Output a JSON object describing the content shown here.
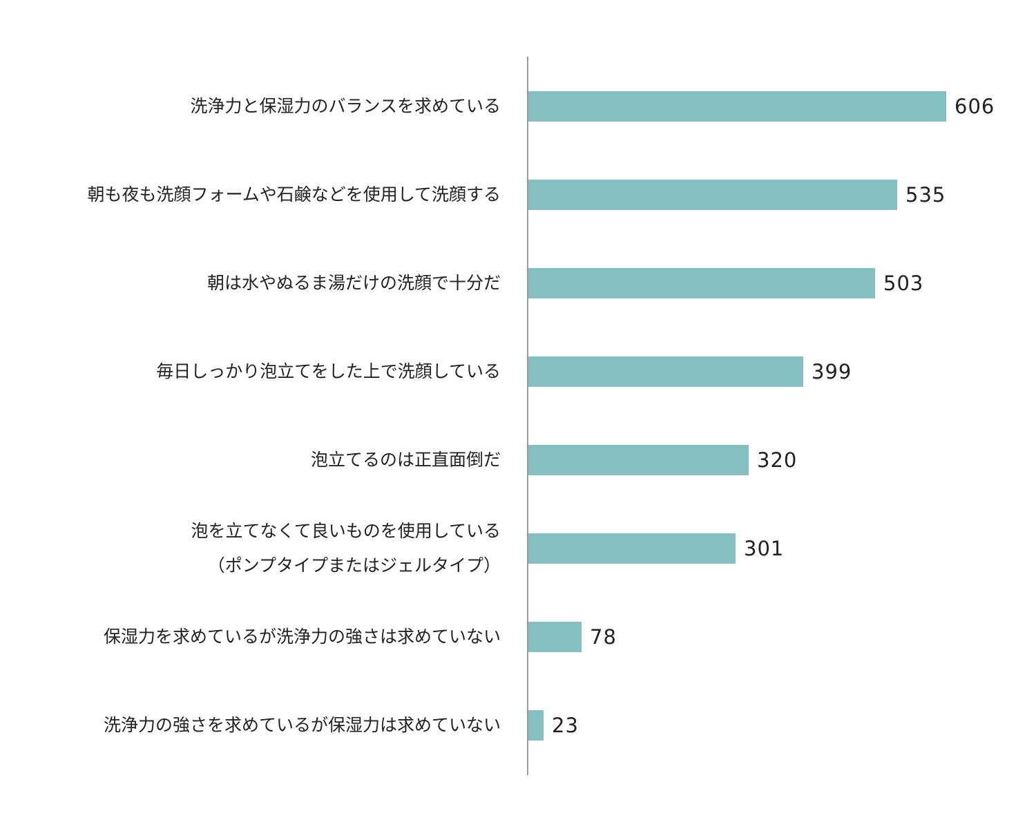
{
  "colors": {
    "bar": "#84bfc1",
    "axis": "#9a9a9a",
    "text": "#222222",
    "background": "#ffffff"
  },
  "chart_data": {
    "type": "bar",
    "orientation": "horizontal",
    "title": "",
    "xlabel": "",
    "ylabel": "",
    "grid": false,
    "legend": "none",
    "xlim": [
      0,
      606
    ],
    "categories": [
      [
        "洗浄力と保湿力のバランスを求めている"
      ],
      [
        "朝も夜も洗顔フォームや石鹸などを使用して洗顔する"
      ],
      [
        "朝は水やぬるま湯だけの洗顔で十分だ"
      ],
      [
        "毎日しっかり泡立てをした上で洗顔している"
      ],
      [
        "泡立てるのは正直面倒だ"
      ],
      [
        "泡を立てなくて良いものを使用している",
        "（ポンプタイプまたはジェルタイプ）"
      ],
      [
        "保湿力を求めているが洗浄力の強さは求めていない"
      ],
      [
        "洗浄力の強さを求めているが保湿力は求めていない"
      ]
    ],
    "values": [
      606,
      535,
      503,
      399,
      320,
      301,
      78,
      23
    ]
  }
}
